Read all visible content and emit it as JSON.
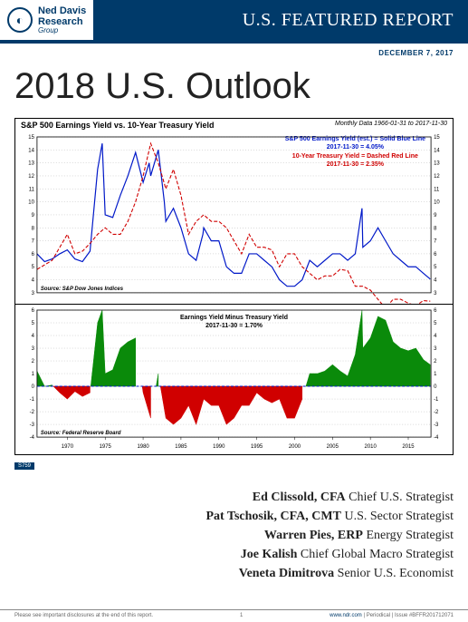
{
  "header": {
    "brand_line1": "Ned Davis",
    "brand_line2": "Research",
    "brand_line3": "Group",
    "title": "U.S. FEATURED REPORT",
    "date": "DECEMBER 7, 2017",
    "brand_color": "#003a6a"
  },
  "main_title": "2018 U.S. Outlook",
  "chart": {
    "title": "S&P 500 Earnings Yield vs. 10-Year Treasury Yield",
    "meta": "Monthly Data 1966-01-31 to 2017-11-30",
    "ref": "S759",
    "legend": {
      "line1": "S&P 500 Earnings Yield (est.) = Solid Blue Line",
      "line2": "2017-11-30 = 4.05%",
      "line3": "10-Year Treasury Yield = Dashed Red Line",
      "line4": "2017-11-30 = 2.35%"
    },
    "panel_top": {
      "type": "line",
      "x_years": [
        1970,
        1975,
        1980,
        1985,
        1990,
        1995,
        2000,
        2005,
        2010,
        2015
      ],
      "x_range": [
        1966,
        2018
      ],
      "y_range": [
        3,
        15
      ],
      "y_ticks": [
        3,
        4,
        5,
        6,
        7,
        8,
        9,
        10,
        11,
        12,
        13,
        14,
        15
      ],
      "grid_color": "#808080",
      "series": [
        {
          "name": "sp500_earnings_yield",
          "color": "#0018c8",
          "dash": "none",
          "width": 1.2,
          "points": [
            [
              1966,
              6.0
            ],
            [
              1967,
              5.4
            ],
            [
              1968,
              5.6
            ],
            [
              1969,
              6.0
            ],
            [
              1970,
              6.3
            ],
            [
              1971,
              5.6
            ],
            [
              1972,
              5.4
            ],
            [
              1973,
              6.2
            ],
            [
              1974,
              12.5
            ],
            [
              1974.6,
              14.5
            ],
            [
              1975,
              9.0
            ],
            [
              1976,
              8.8
            ],
            [
              1977,
              10.5
            ],
            [
              1978,
              12.0
            ],
            [
              1979,
              13.8
            ],
            [
              1980,
              11.5
            ],
            [
              1980.8,
              13.0
            ],
            [
              1981,
              12.0
            ],
            [
              1982,
              14.0
            ],
            [
              1982.8,
              10.0
            ],
            [
              1983,
              8.5
            ],
            [
              1984,
              9.5
            ],
            [
              1985,
              8.0
            ],
            [
              1986,
              6.0
            ],
            [
              1987,
              5.5
            ],
            [
              1987.9,
              7.5
            ],
            [
              1988,
              8.0
            ],
            [
              1989,
              7.0
            ],
            [
              1990,
              7.0
            ],
            [
              1991,
              5.0
            ],
            [
              1992,
              4.5
            ],
            [
              1993,
              4.5
            ],
            [
              1994,
              6.0
            ],
            [
              1995,
              6.0
            ],
            [
              1996,
              5.5
            ],
            [
              1997,
              5.0
            ],
            [
              1998,
              4.0
            ],
            [
              1999,
              3.5
            ],
            [
              2000,
              3.5
            ],
            [
              2001,
              4.0
            ],
            [
              2002,
              5.5
            ],
            [
              2003,
              5.0
            ],
            [
              2004,
              5.5
            ],
            [
              2005,
              6.0
            ],
            [
              2006,
              6.0
            ],
            [
              2007,
              5.5
            ],
            [
              2008,
              6.0
            ],
            [
              2008.9,
              9.5
            ],
            [
              2009,
              6.5
            ],
            [
              2010,
              7.0
            ],
            [
              2011,
              8.0
            ],
            [
              2012,
              7.0
            ],
            [
              2013,
              6.0
            ],
            [
              2014,
              5.5
            ],
            [
              2015,
              5.0
            ],
            [
              2016,
              5.0
            ],
            [
              2017,
              4.5
            ],
            [
              2017.9,
              4.05
            ]
          ]
        },
        {
          "name": "treasury_10y_yield",
          "color": "#d00000",
          "dash": "4,2",
          "width": 1.1,
          "points": [
            [
              1966,
              4.8
            ],
            [
              1968,
              5.5
            ],
            [
              1970,
              7.5
            ],
            [
              1971,
              6.0
            ],
            [
              1972,
              6.2
            ],
            [
              1973,
              6.8
            ],
            [
              1974,
              7.5
            ],
            [
              1975,
              8.0
            ],
            [
              1976,
              7.5
            ],
            [
              1977,
              7.5
            ],
            [
              1978,
              8.5
            ],
            [
              1979,
              10.0
            ],
            [
              1980,
              12.0
            ],
            [
              1981,
              14.5
            ],
            [
              1982,
              13.0
            ],
            [
              1983,
              11.0
            ],
            [
              1984,
              12.5
            ],
            [
              1985,
              10.5
            ],
            [
              1986,
              7.5
            ],
            [
              1987,
              8.5
            ],
            [
              1988,
              9.0
            ],
            [
              1989,
              8.5
            ],
            [
              1990,
              8.5
            ],
            [
              1991,
              8.0
            ],
            [
              1992,
              7.0
            ],
            [
              1993,
              6.0
            ],
            [
              1994,
              7.5
            ],
            [
              1995,
              6.5
            ],
            [
              1996,
              6.5
            ],
            [
              1997,
              6.3
            ],
            [
              1998,
              5.0
            ],
            [
              1999,
              6.0
            ],
            [
              2000,
              6.0
            ],
            [
              2001,
              5.0
            ],
            [
              2002,
              4.5
            ],
            [
              2003,
              4.0
            ],
            [
              2004,
              4.3
            ],
            [
              2005,
              4.3
            ],
            [
              2006,
              4.8
            ],
            [
              2007,
              4.7
            ],
            [
              2008,
              3.5
            ],
            [
              2009,
              3.5
            ],
            [
              2010,
              3.2
            ],
            [
              2011,
              2.5
            ],
            [
              2012,
              1.8
            ],
            [
              2013,
              2.5
            ],
            [
              2014,
              2.5
            ],
            [
              2015,
              2.2
            ],
            [
              2016,
              2.0
            ],
            [
              2017,
              2.4
            ],
            [
              2017.9,
              2.35
            ]
          ]
        }
      ],
      "source": "Source:  S&P Dow Jones Indices"
    },
    "panel_bottom": {
      "type": "area",
      "subtitle": "Earnings Yield Minus Treasury Yield",
      "subtitle2": "2017-11-30 = 1.70%",
      "x_years": [
        1970,
        1975,
        1980,
        1985,
        1990,
        1995,
        2000,
        2005,
        2010,
        2015
      ],
      "x_range": [
        1966,
        2018
      ],
      "y_range": [
        -4,
        6
      ],
      "y_ticks": [
        -4,
        -3,
        -2,
        -1,
        0,
        1,
        2,
        3,
        4,
        5,
        6
      ],
      "zero_color": "#0018c8",
      "pos_color": "#0a8a0a",
      "neg_color": "#d00000",
      "grid_color": "#808080",
      "points": [
        [
          1966,
          1.2
        ],
        [
          1967,
          0.0
        ],
        [
          1968,
          0.1
        ],
        [
          1969,
          -0.5
        ],
        [
          1970,
          -1.0
        ],
        [
          1971,
          -0.4
        ],
        [
          1972,
          -0.8
        ],
        [
          1973,
          -0.5
        ],
        [
          1974,
          5.0
        ],
        [
          1974.6,
          6.0
        ],
        [
          1975,
          1.0
        ],
        [
          1976,
          1.3
        ],
        [
          1977,
          3.0
        ],
        [
          1978,
          3.5
        ],
        [
          1979,
          3.8
        ],
        [
          1980,
          -0.5
        ],
        [
          1981,
          -2.5
        ],
        [
          1982,
          1.0
        ],
        [
          1983,
          -2.5
        ],
        [
          1984,
          -3.0
        ],
        [
          1985,
          -2.5
        ],
        [
          1986,
          -1.5
        ],
        [
          1987,
          -3.0
        ],
        [
          1988,
          -1.0
        ],
        [
          1989,
          -1.5
        ],
        [
          1990,
          -1.5
        ],
        [
          1991,
          -3.0
        ],
        [
          1992,
          -2.5
        ],
        [
          1993,
          -1.5
        ],
        [
          1994,
          -1.5
        ],
        [
          1995,
          -0.5
        ],
        [
          1996,
          -1.0
        ],
        [
          1997,
          -1.3
        ],
        [
          1998,
          -1.0
        ],
        [
          1999,
          -2.5
        ],
        [
          2000,
          -2.5
        ],
        [
          2001,
          -1.0
        ],
        [
          2002,
          1.0
        ],
        [
          2003,
          1.0
        ],
        [
          2004,
          1.2
        ],
        [
          2005,
          1.7
        ],
        [
          2006,
          1.2
        ],
        [
          2007,
          0.8
        ],
        [
          2008,
          2.5
        ],
        [
          2008.9,
          6.0
        ],
        [
          2009,
          3.0
        ],
        [
          2010,
          3.8
        ],
        [
          2011,
          5.5
        ],
        [
          2012,
          5.2
        ],
        [
          2013,
          3.5
        ],
        [
          2014,
          3.0
        ],
        [
          2015,
          2.8
        ],
        [
          2016,
          3.0
        ],
        [
          2017,
          2.1
        ],
        [
          2017.9,
          1.7
        ]
      ],
      "source": "Source:  Federal Reserve Board"
    }
  },
  "authors": [
    {
      "name": "Ed Clissold, CFA",
      "title": "Chief U.S. Strategist"
    },
    {
      "name": "Pat Tschosik, CFA, CMT",
      "title": "U.S. Sector Strategist"
    },
    {
      "name": "Warren Pies, ERP",
      "title": "Energy Strategist"
    },
    {
      "name": "Joe Kalish",
      "title": "Chief Global Macro Strategist"
    },
    {
      "name": "Veneta Dimitrova",
      "title": "Senior U.S. Economist"
    }
  ],
  "footer": {
    "left": "Please see important disclosures at the end of this report.",
    "page": "1",
    "right_link": "www.ndr.com",
    "right_text": " | Periodical | Issue #BFFR201712071"
  }
}
